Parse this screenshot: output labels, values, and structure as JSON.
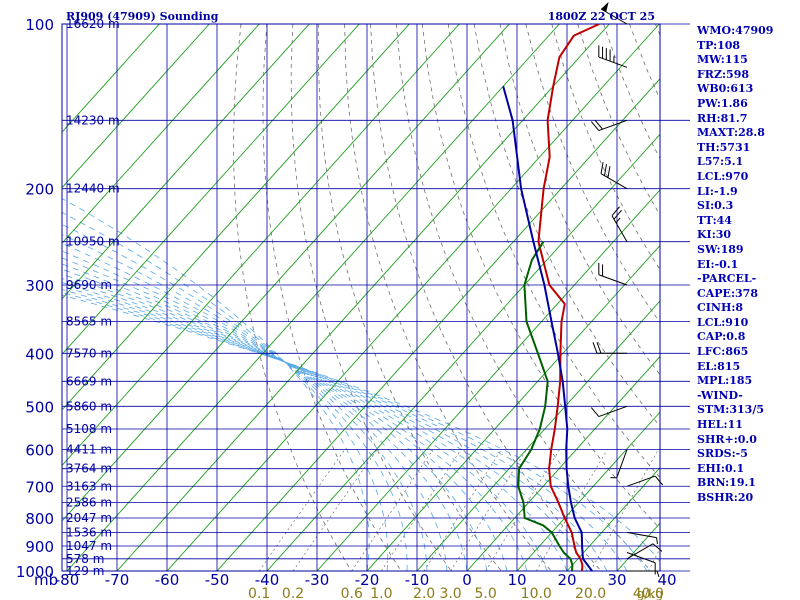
{
  "chart_data": {
    "type": "line",
    "title": "RJ909 (47909) Sounding",
    "time_label": "1800Z 22 OCT 25",
    "xlabel": "",
    "ylabel": "mb",
    "temperature_ticks": [
      -80,
      -70,
      -60,
      -50,
      -40,
      -30,
      -20,
      -10,
      0,
      10,
      20,
      30,
      40
    ],
    "pressure_ticks": [
      100,
      200,
      300,
      400,
      500,
      600,
      700,
      800,
      900,
      1000
    ],
    "pressure_range": [
      100,
      1000
    ],
    "temperature_range": [
      -80,
      40
    ],
    "mixing_ratio_ticks": [
      "0.1",
      "0.2",
      "0.6",
      "1.0",
      "2.0",
      "3.0",
      "5.0",
      "10.0",
      "20.0",
      "40.0"
    ],
    "mixing_ratio_unit": "g/kg",
    "height_labels": [
      {
        "p": 100,
        "label": "16620 m"
      },
      {
        "p": 150,
        "label": "14230 m"
      },
      {
        "p": 200,
        "label": "12440 m"
      },
      {
        "p": 250,
        "label": "10950 m"
      },
      {
        "p": 300,
        "label": "9690 m"
      },
      {
        "p": 350,
        "label": "8565 m"
      },
      {
        "p": 400,
        "label": "7570 m"
      },
      {
        "p": 450,
        "label": "6669 m"
      },
      {
        "p": 500,
        "label": "5860 m"
      },
      {
        "p": 550,
        "label": "5108 m"
      },
      {
        "p": 600,
        "label": "4411 m"
      },
      {
        "p": 650,
        "label": "3764 m"
      },
      {
        "p": 700,
        "label": "3163 m"
      },
      {
        "p": 750,
        "label": "2586 m"
      },
      {
        "p": 800,
        "label": "2047 m"
      },
      {
        "p": 850,
        "label": "1536 m"
      },
      {
        "p": 900,
        "label": "1047 m"
      },
      {
        "p": 950,
        "label": "578 m"
      },
      {
        "p": 1000,
        "label": "129 m"
      }
    ],
    "series": [
      {
        "name": "Temperature",
        "color": "#c00000",
        "points": [
          [
            1000,
            23
          ],
          [
            975,
            22
          ],
          [
            950,
            20.5
          ],
          [
            925,
            18.5
          ],
          [
            900,
            17
          ],
          [
            850,
            14
          ],
          [
            800,
            10
          ],
          [
            750,
            6
          ],
          [
            700,
            1.5
          ],
          [
            650,
            -2
          ],
          [
            600,
            -5
          ],
          [
            550,
            -8
          ],
          [
            500,
            -11.5
          ],
          [
            450,
            -15.5
          ],
          [
            400,
            -20.5
          ],
          [
            350,
            -26
          ],
          [
            325,
            -28.5
          ],
          [
            300,
            -35
          ],
          [
            250,
            -45
          ],
          [
            200,
            -53.5
          ],
          [
            175,
            -58
          ],
          [
            150,
            -65
          ],
          [
            130,
            -70
          ],
          [
            115,
            -74
          ],
          [
            105,
            -75
          ],
          [
            100,
            -72
          ]
        ]
      },
      {
        "name": "Dewpoint",
        "color": "#006000",
        "points": [
          [
            1000,
            21
          ],
          [
            975,
            20
          ],
          [
            950,
            18.5
          ],
          [
            925,
            16
          ],
          [
            900,
            14
          ],
          [
            850,
            10
          ],
          [
            825,
            7
          ],
          [
            800,
            2
          ],
          [
            750,
            -1
          ],
          [
            700,
            -5
          ],
          [
            650,
            -8
          ],
          [
            600,
            -9
          ],
          [
            550,
            -11
          ],
          [
            500,
            -14
          ],
          [
            450,
            -18
          ],
          [
            400,
            -25
          ],
          [
            350,
            -33
          ],
          [
            300,
            -40
          ],
          [
            270,
            -43
          ],
          [
            250,
            -44
          ]
        ]
      },
      {
        "name": "Parcel",
        "color": "#0000a0",
        "points": [
          [
            1000,
            25
          ],
          [
            950,
            21
          ],
          [
            910,
            19
          ],
          [
            850,
            16
          ],
          [
            800,
            12
          ],
          [
            750,
            8.5
          ],
          [
            700,
            5
          ],
          [
            650,
            1.5
          ],
          [
            600,
            -2
          ],
          [
            550,
            -5.5
          ],
          [
            500,
            -10
          ],
          [
            450,
            -15
          ],
          [
            400,
            -21
          ],
          [
            350,
            -28
          ],
          [
            300,
            -36
          ],
          [
            250,
            -46
          ],
          [
            200,
            -58
          ],
          [
            150,
            -72
          ],
          [
            130,
            -80
          ]
        ]
      }
    ]
  },
  "stats": [
    "WMO:47909",
    "TP:108",
    "MW:115",
    "FRZ:598",
    "WB0:613",
    "PW:1.86",
    "RH:81.7",
    "MAXT:28.8",
    "TH:5731",
    "L57:5.1",
    "LCL:970",
    "LI:-1.9",
    "SI:0.3",
    "TT:44",
    "KI:30",
    "SW:189",
    "EI:-0.1",
    "-PARCEL-",
    "CAPE:378",
    "CINH:8",
    "LCL:910",
    "CAP:0.8",
    "LFC:865",
    "EL:815",
    "MPL:185",
    "-WIND-",
    "STM:313/5",
    "HEL:11",
    "SHR+:0.0",
    "SRDS:-5",
    "EHI:0.1",
    "BRN:19.1",
    "BSHR:20"
  ],
  "wind_barbs": [
    {
      "p": 100,
      "dir": 300,
      "spd": 50
    },
    {
      "p": 120,
      "dir": 290,
      "spd": 45
    },
    {
      "p": 150,
      "dir": 250,
      "spd": 20
    },
    {
      "p": 200,
      "dir": 300,
      "spd": 30
    },
    {
      "p": 250,
      "dir": 330,
      "spd": 25
    },
    {
      "p": 300,
      "dir": 290,
      "spd": 20
    },
    {
      "p": 400,
      "dir": 270,
      "spd": 20
    },
    {
      "p": 500,
      "dir": 250,
      "spd": 10
    },
    {
      "p": 600,
      "dir": 200,
      "spd": 5
    },
    {
      "p": 700,
      "dir": 70,
      "spd": 10
    },
    {
      "p": 850,
      "dir": 100,
      "spd": 5
    },
    {
      "p": 925,
      "dir": 110,
      "spd": 10
    },
    {
      "p": 950,
      "dir": 60,
      "spd": 10
    },
    {
      "p": 1000,
      "dir": 90,
      "spd": 5
    }
  ],
  "colors": {
    "axis": "#0000a0",
    "isotherm": "#1a9e1a",
    "dry_adiabat": "#707070",
    "moist_adiabat": "#58a8e8",
    "mixing_ratio_label": "#8c7c1a",
    "background": "#ffffff"
  }
}
